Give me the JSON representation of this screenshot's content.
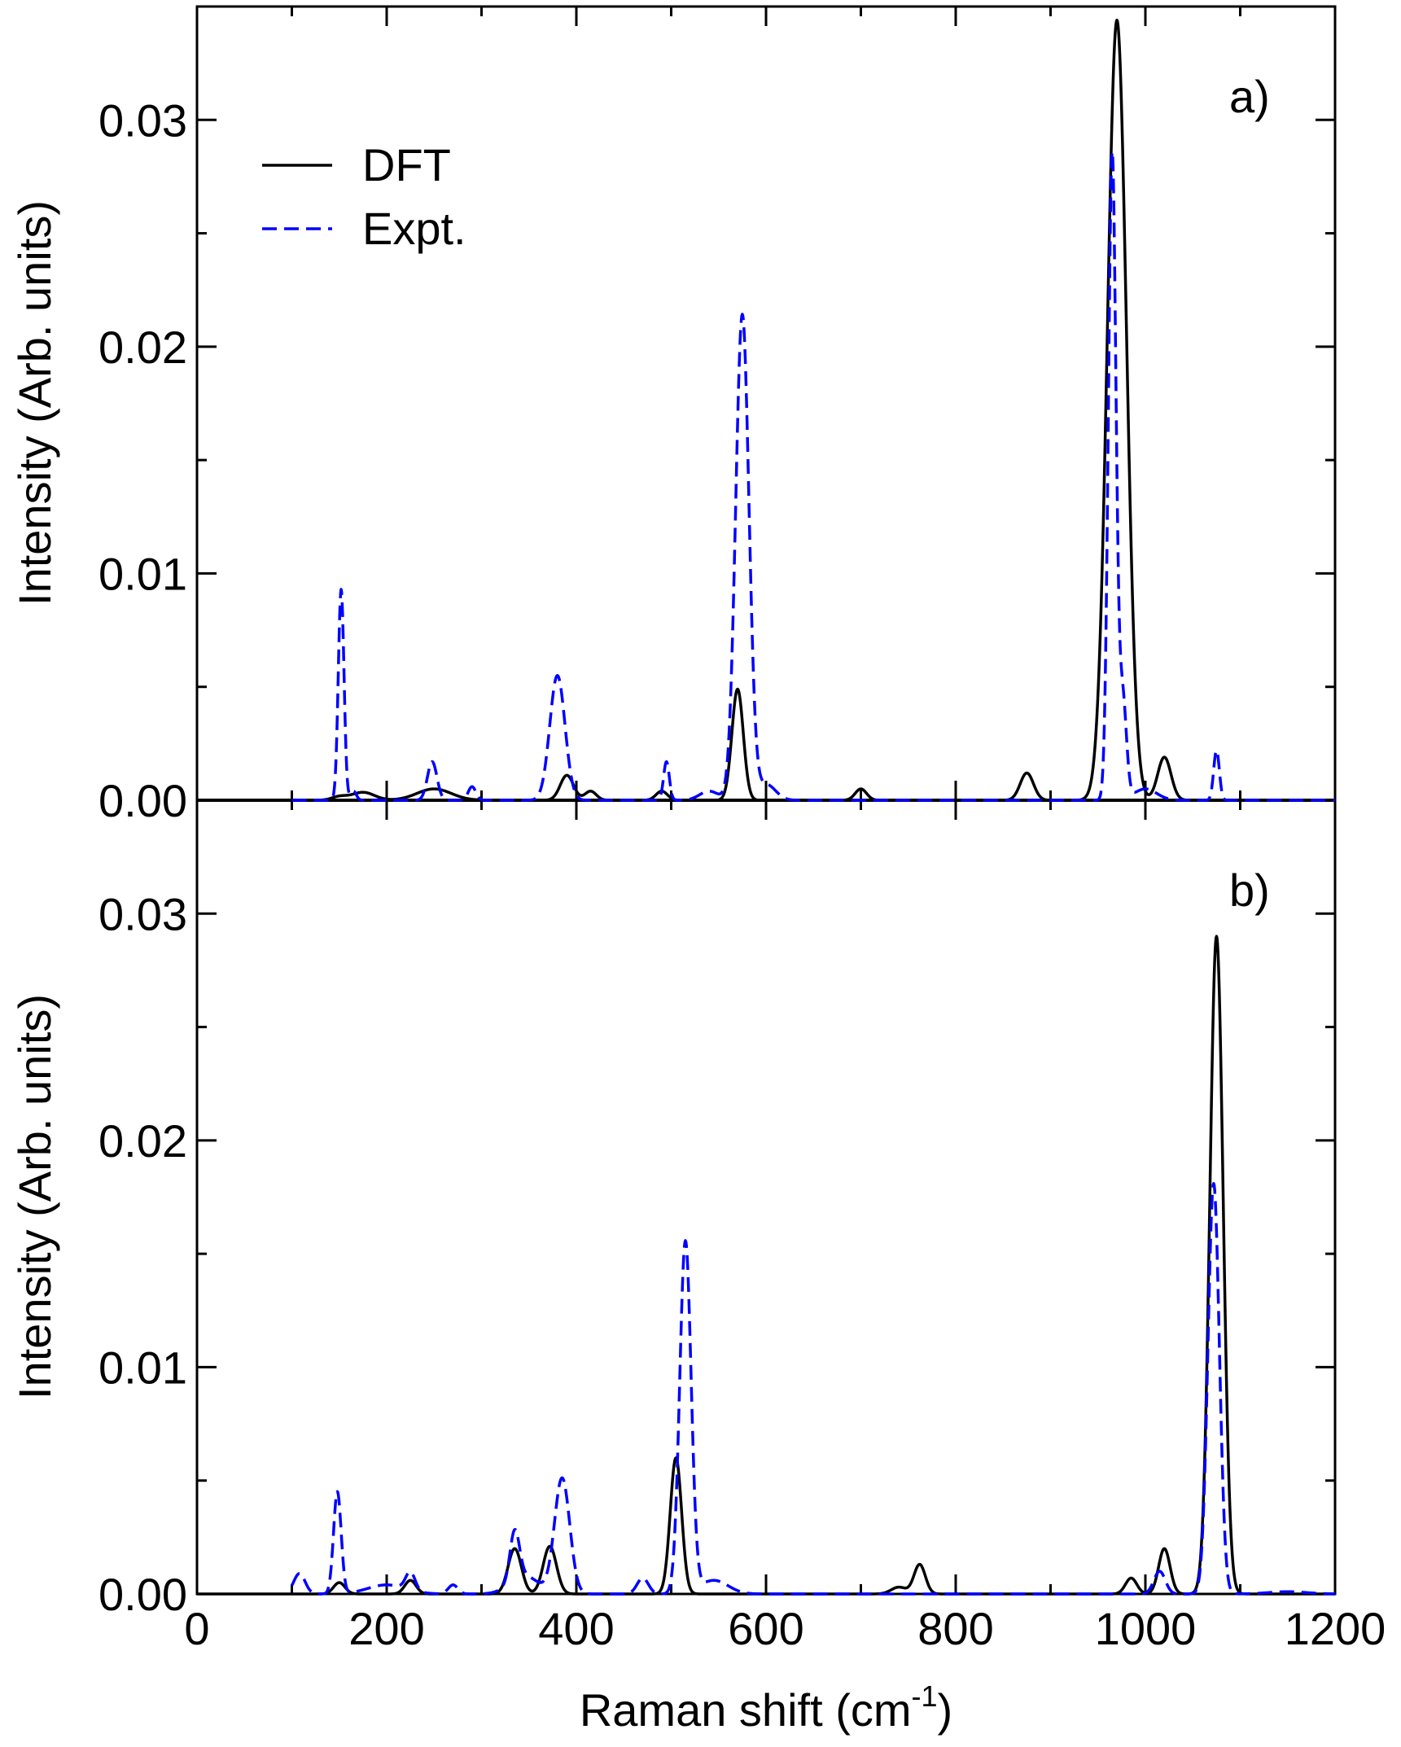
{
  "colors": {
    "axis": "#000000",
    "dft": "#000000",
    "expt": "#0000ff",
    "background": "#ffffff"
  },
  "legend": {
    "items": [
      "DFT",
      "Expt."
    ],
    "placement": "top-left (panel a)"
  },
  "xaxis": {
    "label_main": "Raman shift (cm",
    "label_sup": "-1",
    "label_close": ")",
    "ticks": [
      "0",
      "200",
      "400",
      "600",
      "800",
      "1000",
      "1200"
    ]
  },
  "yaxis": {
    "label": "Intensity (Arb. units)",
    "ticks": [
      "0.00",
      "0.01",
      "0.02",
      "0.03"
    ]
  },
  "chart_data": [
    {
      "type": "line",
      "panel_label": "a)",
      "xlabel": "Raman shift (cm-1)",
      "ylabel": "Intensity (Arb. units)",
      "xlim": [
        0,
        1200
      ],
      "ylim": [
        0,
        0.035
      ],
      "grid": false,
      "legend": "top-left",
      "series": [
        {
          "name": "DFT",
          "style": "solid",
          "color": "#000000",
          "peaks": [
            {
              "x": 150,
              "y": 0.00015,
              "w": 8
            },
            {
              "x": 175,
              "y": 0.00035,
              "w": 12
            },
            {
              "x": 250,
              "y": 0.0005,
              "w": 18
            },
            {
              "x": 390,
              "y": 0.0011,
              "w": 7
            },
            {
              "x": 415,
              "y": 0.0004,
              "w": 6
            },
            {
              "x": 490,
              "y": 0.0004,
              "w": 6
            },
            {
              "x": 570,
              "y": 0.0049,
              "w": 6
            },
            {
              "x": 700,
              "y": 0.0005,
              "w": 6
            },
            {
              "x": 875,
              "y": 0.0012,
              "w": 7
            },
            {
              "x": 970,
              "y": 0.0344,
              "w": 10
            },
            {
              "x": 1020,
              "y": 0.0019,
              "w": 7
            }
          ]
        },
        {
          "name": "Expt.",
          "style": "dashed",
          "color": "#0000ff",
          "peaks": [
            {
              "x": 152,
              "y": 0.0093,
              "w": 3
            },
            {
              "x": 165,
              "y": 0.0004,
              "w": 3
            },
            {
              "x": 248,
              "y": 0.0017,
              "w": 5
            },
            {
              "x": 290,
              "y": 0.0006,
              "w": 4
            },
            {
              "x": 380,
              "y": 0.0055,
              "w": 8
            },
            {
              "x": 495,
              "y": 0.0017,
              "w": 3
            },
            {
              "x": 540,
              "y": 0.0004,
              "w": 10
            },
            {
              "x": 575,
              "y": 0.0214,
              "w": 7
            },
            {
              "x": 600,
              "y": 0.0007,
              "w": 10
            },
            {
              "x": 965,
              "y": 0.0285,
              "w": 4
            },
            {
              "x": 976,
              "y": 0.0045,
              "w": 4
            },
            {
              "x": 1000,
              "y": 0.0005,
              "w": 12
            },
            {
              "x": 1075,
              "y": 0.0022,
              "w": 3
            }
          ]
        }
      ]
    },
    {
      "type": "line",
      "panel_label": "b)",
      "xlabel": "Raman shift (cm-1)",
      "ylabel": "Intensity (Arb. units)",
      "xlim": [
        0,
        1200
      ],
      "ylim": [
        0,
        0.035
      ],
      "grid": false,
      "series": [
        {
          "name": "DFT",
          "style": "solid",
          "color": "#000000",
          "peaks": [
            {
              "x": 150,
              "y": 0.0005,
              "w": 6
            },
            {
              "x": 225,
              "y": 0.0006,
              "w": 6
            },
            {
              "x": 335,
              "y": 0.002,
              "w": 7
            },
            {
              "x": 372,
              "y": 0.0021,
              "w": 7
            },
            {
              "x": 505,
              "y": 0.006,
              "w": 6
            },
            {
              "x": 740,
              "y": 0.0003,
              "w": 8
            },
            {
              "x": 762,
              "y": 0.0013,
              "w": 6
            },
            {
              "x": 985,
              "y": 0.0007,
              "w": 6
            },
            {
              "x": 1020,
              "y": 0.002,
              "w": 6
            },
            {
              "x": 1075,
              "y": 0.029,
              "w": 7
            }
          ]
        },
        {
          "name": "Expt.",
          "style": "dashed",
          "color": "#0000ff",
          "peaks": [
            {
              "x": 108,
              "y": 0.0009,
              "w": 6
            },
            {
              "x": 148,
              "y": 0.0045,
              "w": 4
            },
            {
              "x": 200,
              "y": 0.0004,
              "w": 20
            },
            {
              "x": 225,
              "y": 0.0008,
              "w": 5
            },
            {
              "x": 270,
              "y": 0.0004,
              "w": 5
            },
            {
              "x": 335,
              "y": 0.0022,
              "w": 5
            },
            {
              "x": 345,
              "y": 0.0008,
              "w": 15
            },
            {
              "x": 385,
              "y": 0.0051,
              "w": 8
            },
            {
              "x": 470,
              "y": 0.0007,
              "w": 6
            },
            {
              "x": 515,
              "y": 0.0155,
              "w": 6
            },
            {
              "x": 545,
              "y": 0.0006,
              "w": 15
            },
            {
              "x": 1015,
              "y": 0.001,
              "w": 6
            },
            {
              "x": 1072,
              "y": 0.0181,
              "w": 6
            },
            {
              "x": 1150,
              "y": 0.0001,
              "w": 20
            }
          ]
        }
      ]
    }
  ]
}
